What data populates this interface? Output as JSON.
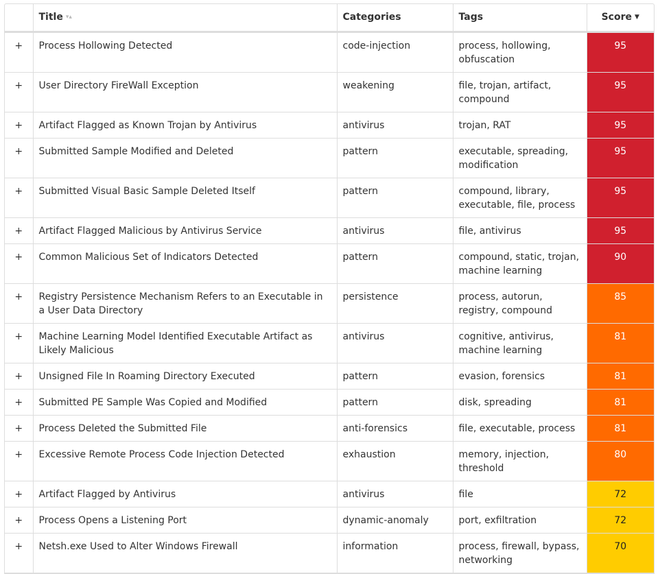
{
  "table": {
    "expand_symbol": "+",
    "columns": [
      "Title",
      "Categories",
      "Tags",
      "Score"
    ],
    "rows": [
      {
        "title": "Process Hollowing Detected",
        "category": "code-injection",
        "tags": "process, hollowing, obfuscation",
        "score": 95,
        "color": "#d0202e"
      },
      {
        "title": "User Directory FireWall Exception",
        "category": "weakening",
        "tags": "file, trojan, artifact, compound",
        "score": 95,
        "color": "#d0202e"
      },
      {
        "title": "Artifact Flagged as Known Trojan by Antivirus",
        "category": "antivirus",
        "tags": "trojan, RAT",
        "score": 95,
        "color": "#d0202e"
      },
      {
        "title": "Submitted Sample Modified and Deleted",
        "category": "pattern",
        "tags": "executable, spreading, modification",
        "score": 95,
        "color": "#d0202e"
      },
      {
        "title": "Submitted Visual Basic Sample Deleted Itself",
        "category": "pattern",
        "tags": "compound, library, executable, file, process",
        "score": 95,
        "color": "#d0202e"
      },
      {
        "title": "Artifact Flagged Malicious by Antivirus Service",
        "category": "antivirus",
        "tags": "file, antivirus",
        "score": 95,
        "color": "#d0202e"
      },
      {
        "title": "Common Malicious Set of Indicators Detected",
        "category": "pattern",
        "tags": "compound, static, trojan, machine learning",
        "score": 90,
        "color": "#d0202e"
      },
      {
        "title": "Registry Persistence Mechanism Refers to an Executable in a User Data Directory",
        "category": "persistence",
        "tags": "process, autorun, registry, compound",
        "score": 85,
        "color": "#ff6a00"
      },
      {
        "title": "Machine Learning Model Identified Executable Artifact as Likely Malicious",
        "category": "antivirus",
        "tags": "cognitive, antivirus, machine learning",
        "score": 81,
        "color": "#ff6a00"
      },
      {
        "title": "Unsigned File In Roaming Directory Executed",
        "category": "pattern",
        "tags": "evasion, forensics",
        "score": 81,
        "color": "#ff6a00"
      },
      {
        "title": "Submitted PE Sample Was Copied and Modified",
        "category": "pattern",
        "tags": "disk, spreading",
        "score": 81,
        "color": "#ff6a00"
      },
      {
        "title": "Process Deleted the Submitted File",
        "category": "anti-forensics",
        "tags": "file, executable, process",
        "score": 81,
        "color": "#ff6a00"
      },
      {
        "title": "Excessive Remote Process Code Injection Detected",
        "category": "exhaustion",
        "tags": "memory, injection, threshold",
        "score": 80,
        "color": "#ff6a00"
      },
      {
        "title": "Artifact Flagged by Antivirus",
        "category": "antivirus",
        "tags": "file",
        "score": 72,
        "color": "#ffcc00"
      },
      {
        "title": "Process Opens a Listening Port",
        "category": "dynamic-anomaly",
        "tags": "port, exfiltration",
        "score": 72,
        "color": "#ffcc00"
      },
      {
        "title": "Netsh.exe Used to Alter Windows Firewall",
        "category": "information",
        "tags": "process, firewall, bypass, networking",
        "score": 70,
        "color": "#ffcc00"
      }
    ]
  }
}
